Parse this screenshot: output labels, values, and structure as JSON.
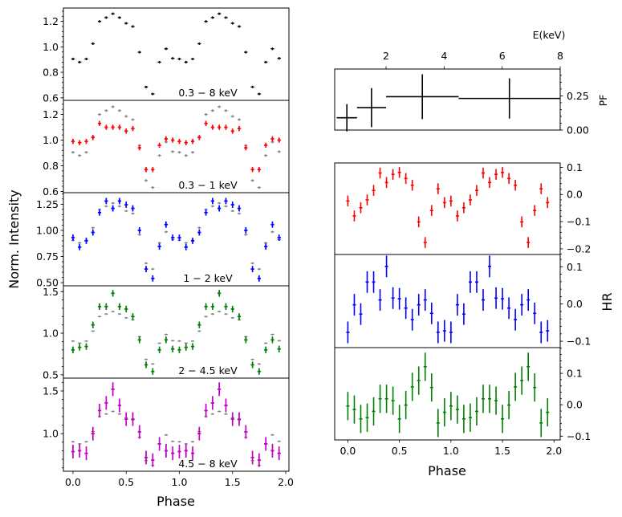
{
  "labels": {
    "left_ylabel": "Norm. Intensity",
    "left_xlabel": "Phase",
    "right_xlabel": "Phase",
    "hr_ylabel": "HR",
    "pf_ylabel": "PF",
    "pf_xlabel": "E(keV)"
  },
  "chart_data": [
    {
      "type": "scatter",
      "panel": "profile",
      "label": "0.3 − 8 keV",
      "color": "#000000",
      "ylim": [
        0.58,
        1.305
      ],
      "yticks": [
        0.6,
        0.8,
        1.0,
        1.2
      ],
      "yticklabels": [
        "0.6",
        "0.8",
        "1.0",
        "1.2"
      ],
      "xlim": [
        -0.09,
        2.03
      ],
      "values": [
        0.905,
        0.88,
        0.905,
        1.025,
        1.2,
        1.23,
        1.26,
        1.23,
        1.185,
        1.16,
        0.958,
        0.685,
        0.63,
        0.88,
        0.985,
        0.91
      ],
      "yerr": 0.01,
      "reference": false
    },
    {
      "type": "scatter",
      "panel": "profile",
      "label": "0.3 − 1 keV",
      "color": "#ff0000",
      "ylim": [
        0.59,
        1.31
      ],
      "yticks": [
        0.6,
        0.8,
        1.0,
        1.2
      ],
      "yticklabels": [
        "0.6",
        "0.8",
        "1.0",
        "1.2"
      ],
      "xlim": [
        -0.09,
        2.03
      ],
      "values": [
        0.99,
        0.98,
        0.99,
        1.02,
        1.13,
        1.1,
        1.1,
        1.1,
        1.07,
        1.09,
        0.94,
        0.77,
        0.77,
        0.96,
        1.01,
        1.0
      ],
      "yerr": 0.02,
      "reference": true
    },
    {
      "type": "scatter",
      "panel": "profile",
      "label": "1 − 2 keV",
      "color": "#0000ff",
      "ylim": [
        0.47,
        1.36
      ],
      "yticks": [
        0.5,
        0.75,
        1.0,
        1.25
      ],
      "yticklabels": [
        "0.50",
        "0.75",
        "1.00",
        "1.25"
      ],
      "xlim": [
        -0.09,
        2.03
      ],
      "values": [
        0.93,
        0.84,
        0.9,
        0.98,
        1.17,
        1.28,
        1.21,
        1.28,
        1.245,
        1.21,
        1.0,
        0.63,
        0.54,
        0.845,
        1.055,
        0.93
      ],
      "yerr": 0.03,
      "reference": true
    },
    {
      "type": "scatter",
      "panel": "profile",
      "label": "2 − 4.5 keV",
      "color": "#008000",
      "ylim": [
        0.46,
        1.57
      ],
      "yticks": [
        0.5,
        1.0,
        1.5
      ],
      "yticklabels": [
        "0.5",
        "1.0",
        "1.5"
      ],
      "xlim": [
        -0.09,
        2.03
      ],
      "values": [
        0.8,
        0.83,
        0.84,
        1.1,
        1.32,
        1.32,
        1.48,
        1.32,
        1.29,
        1.2,
        0.92,
        0.62,
        0.54,
        0.8,
        0.92,
        0.81
      ],
      "yerr": 0.04,
      "reference": true
    },
    {
      "type": "scatter",
      "panel": "profile",
      "label": "4.5 − 8 keV",
      "color": "#bf00bf",
      "ylim": [
        0.56,
        1.65
      ],
      "yticks": [
        1.0,
        1.5
      ],
      "yticklabels": [
        "1.0",
        "1.5"
      ],
      "xlim": [
        -0.09,
        2.03
      ],
      "values": [
        0.79,
        0.8,
        0.77,
        1.0,
        1.27,
        1.36,
        1.52,
        1.33,
        1.17,
        1.17,
        1.02,
        0.72,
        0.69,
        0.88,
        0.8,
        0.77
      ],
      "yerr": 0.08,
      "reference": true,
      "xticks": [
        0.0,
        0.5,
        1.0,
        1.5,
        2.0
      ],
      "xticklabels": [
        "0.0",
        "0.5",
        "1.0",
        "1.5",
        "2.0"
      ]
    },
    {
      "type": "scatter",
      "panel": "pulsed_fraction",
      "color": "#000000",
      "xlim": [
        0.23,
        8
      ],
      "ylim": [
        0,
        0.446
      ],
      "xticks": [
        2,
        4,
        6,
        8
      ],
      "xticklabels": [
        "2",
        "4",
        "6",
        "8"
      ],
      "yticks": [
        0,
        0.25
      ],
      "yticklabels": [
        "0.00",
        "0.25"
      ],
      "points": [
        {
          "x": [
            0.3,
            1.0
          ],
          "y": 0.09,
          "yerr": 0.1
        },
        {
          "x": [
            1.0,
            2.0
          ],
          "y": 0.164,
          "yerr": 0.143
        },
        {
          "x": [
            2.0,
            4.5
          ],
          "y": 0.244,
          "yerr": 0.164
        },
        {
          "x": [
            4.5,
            8.0
          ],
          "y": 0.231,
          "yerr": 0.147
        }
      ]
    },
    {
      "type": "scatter",
      "panel": "hardness_ratio",
      "color": "#ff0000",
      "xlim": [
        -0.128,
        2.06
      ],
      "ylim": [
        -0.221,
        0.116
      ],
      "yticks": [
        -0.2,
        -0.1,
        0.0,
        0.1
      ],
      "yticklabels": [
        "−0.2",
        "−0.1",
        "0.0",
        "0.1"
      ],
      "values": [
        -0.024,
        -0.079,
        -0.049,
        -0.02,
        0.015,
        0.079,
        0.044,
        0.074,
        0.081,
        0.059,
        0.034,
        -0.101,
        -0.177,
        -0.059,
        0.021,
        -0.03
      ],
      "yerr": 0.02
    },
    {
      "type": "scatter",
      "panel": "hardness_ratio",
      "color": "#0000ff",
      "xlim": [
        -0.128,
        2.06
      ],
      "ylim": [
        -0.117,
        0.133
      ],
      "yticks": [
        -0.1,
        0.0,
        0.1
      ],
      "yticklabels": [
        "−0.1",
        "0.0",
        "0.1"
      ],
      "values": [
        -0.076,
        -0.002,
        -0.027,
        0.059,
        0.059,
        0.011,
        0.101,
        0.016,
        0.014,
        -0.011,
        -0.042,
        -0.002,
        0.011,
        -0.025,
        -0.076,
        -0.072
      ],
      "yerr": 0.029
    },
    {
      "type": "scatter",
      "panel": "hardness_ratio",
      "color": "#008000",
      "xlim": [
        -0.128,
        2.06
      ],
      "ylim": [
        -0.112,
        0.182
      ],
      "yticks": [
        -0.1,
        0.0,
        0.1
      ],
      "yticklabels": [
        "−0.1",
        "0.0",
        "0.1"
      ],
      "values": [
        -0.004,
        -0.015,
        -0.045,
        -0.041,
        -0.021,
        0.019,
        0.019,
        0.013,
        -0.045,
        -0.001,
        0.057,
        0.077,
        0.121,
        0.055,
        -0.058,
        -0.024
      ],
      "yerr": 0.045,
      "xticks": [
        0.0,
        0.5,
        1.0,
        1.5,
        2.0
      ],
      "xticklabels": [
        "0.0",
        "0.5",
        "1.0",
        "1.5",
        "2.0"
      ]
    }
  ]
}
